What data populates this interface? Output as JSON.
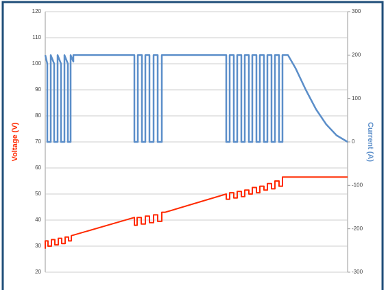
{
  "chart_data": {
    "type": "line",
    "y_label": "Voltage (V)",
    "y2_label": "Current (A)",
    "xlim": [
      0,
      441
    ],
    "ylim": [
      20,
      120
    ],
    "yticks": [
      20,
      30,
      40,
      50,
      60,
      70,
      80,
      90,
      100,
      110,
      120
    ],
    "y2lim": [
      -300,
      300
    ],
    "y2ticks": [
      -300,
      -200,
      -100,
      0,
      100,
      200,
      300
    ],
    "grid": true,
    "series": [
      {
        "name": "Voltage",
        "color": "#ff2a00",
        "axis": "y",
        "x": [
          0,
          0,
          4,
          4,
          9,
          9,
          14,
          14,
          19,
          19,
          24,
          24,
          29,
          29,
          34,
          34,
          38,
          38,
          130,
          130,
          134,
          134,
          140,
          140,
          146,
          146,
          152,
          152,
          158,
          158,
          164,
          164,
          170,
          170,
          175,
          264,
          264,
          269,
          269,
          275,
          275,
          280,
          280,
          286,
          286,
          291,
          291,
          297,
          297,
          302,
          302,
          308,
          308,
          313,
          313,
          319,
          319,
          324,
          324,
          330,
          330,
          335,
          335,
          341,
          341,
          346,
          346,
          441
        ],
        "values": [
          29,
          32,
          32,
          30,
          30,
          32.5,
          32.5,
          30.5,
          30.5,
          33,
          33,
          31,
          31,
          33.5,
          33.5,
          32,
          32,
          34,
          41,
          38,
          38,
          41,
          41,
          38.5,
          38.5,
          41.5,
          41.5,
          39,
          39,
          42,
          42,
          39.5,
          39.5,
          43,
          43,
          50,
          48,
          48,
          50.5,
          50.5,
          48.5,
          48.5,
          51,
          51,
          49,
          49,
          51.5,
          51.5,
          50,
          50,
          52.5,
          52.5,
          50.5,
          50.5,
          53,
          53,
          51.5,
          51.5,
          54,
          54,
          52,
          52,
          55,
          55,
          53,
          53,
          56.5,
          56.5
        ]
      },
      {
        "name": "Current",
        "color": "#5b8ec9",
        "axis": "y2",
        "x": [
          0,
          3,
          3,
          8,
          8,
          13,
          13,
          18,
          18,
          23,
          23,
          28,
          28,
          33,
          33,
          37,
          37,
          41,
          41,
          130,
          130,
          135,
          135,
          141,
          141,
          146,
          146,
          152,
          152,
          158,
          158,
          164,
          164,
          170,
          170,
          264,
          264,
          269,
          269,
          275,
          275,
          280,
          280,
          286,
          286,
          291,
          291,
          297,
          297,
          302,
          302,
          308,
          308,
          313,
          313,
          319,
          319,
          324,
          324,
          330,
          330,
          335,
          335,
          341,
          341,
          346,
          346,
          354,
          365,
          380,
          395,
          410,
          425,
          441
        ],
        "values": [
          200,
          180,
          0,
          0,
          200,
          180,
          0,
          0,
          200,
          180,
          0,
          0,
          200,
          180,
          0,
          0,
          200,
          185,
          200,
          200,
          0,
          0,
          200,
          200,
          0,
          0,
          200,
          200,
          0,
          0,
          200,
          200,
          0,
          0,
          200,
          200,
          0,
          0,
          200,
          200,
          0,
          0,
          200,
          200,
          0,
          0,
          200,
          200,
          0,
          0,
          200,
          200,
          0,
          0,
          200,
          200,
          0,
          0,
          200,
          200,
          0,
          0,
          200,
          200,
          0,
          0,
          200,
          200,
          170,
          120,
          75,
          40,
          15,
          0
        ]
      }
    ]
  }
}
